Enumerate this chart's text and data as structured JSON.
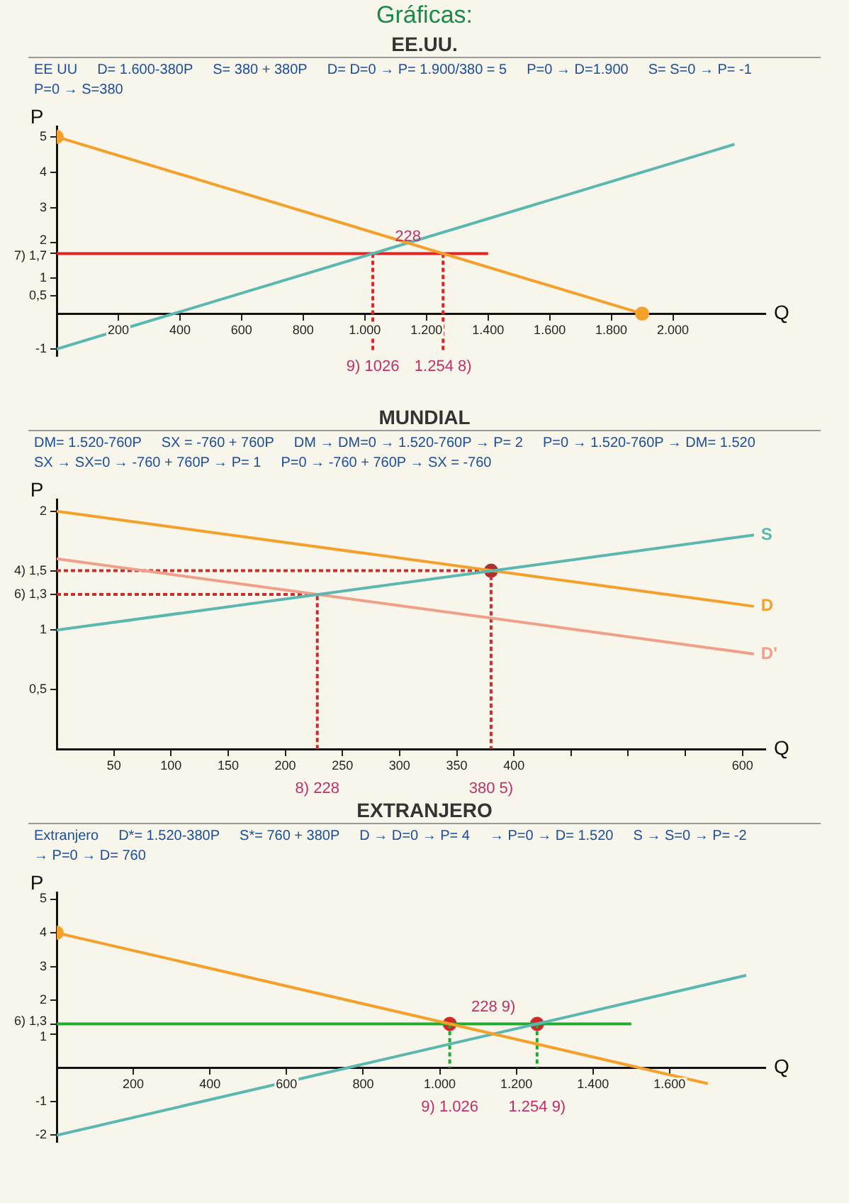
{
  "chart_data": [
    {
      "type": "line",
      "subtitle": "Gráficas:",
      "title": "EE.UU.",
      "xlabel": "Q",
      "ylabel": "P",
      "xlim": [
        0,
        2300
      ],
      "ylim": [
        -1.2,
        5.3
      ],
      "xticks": [
        200,
        400,
        600,
        800,
        {
          "value": 1000,
          "label": "1.000"
        },
        {
          "value": 1200,
          "label": "1.200"
        },
        {
          "value": 1400,
          "label": "1.400"
        },
        {
          "value": 1600,
          "label": "1.600"
        },
        {
          "value": 1800,
          "label": "1.800"
        },
        {
          "value": 2000,
          "label": "2.000"
        }
      ],
      "yticks": [
        -1,
        {
          "value": 0.5,
          "label": "0,5"
        },
        1,
        {
          "value": 1.7,
          "label": "7) 1,7"
        },
        2,
        3,
        4,
        5
      ],
      "grid": false,
      "legend": false,
      "series": [
        {
          "type": "line",
          "color": "#f5a02a",
          "marker": "none",
          "x": [
            0,
            1900
          ],
          "values": [
            5,
            0
          ]
        },
        {
          "type": "line",
          "color": "#5bb8b0",
          "marker": "none",
          "x": [
            0,
            2200
          ],
          "values": [
            -1,
            4.79
          ]
        },
        {
          "type": "line",
          "color": "#e02424",
          "marker": "none",
          "x": [
            0,
            1400
          ],
          "values": [
            1.7,
            1.7
          ]
        },
        {
          "type": "line",
          "color": "#e02424",
          "marker": "none",
          "line_style": "dashed",
          "x": [
            1026,
            1026
          ],
          "values": [
            1.7,
            -1.1
          ]
        },
        {
          "type": "line",
          "color": "#e02424",
          "marker": "none",
          "line_style": "dashed",
          "x": [
            1254,
            1254
          ],
          "values": [
            1.7,
            -1.1
          ]
        },
        {
          "type": "scatter",
          "color": "#f5a02a",
          "marker": "circle",
          "x": [
            0,
            1900
          ],
          "values": [
            5,
            0
          ]
        }
      ],
      "annotations": [
        "EE UU",
        "D= 1.600-380P",
        "S= 380 + 380P",
        "D= D=0 → P= 1.900/380 = 5",
        "P=0 → D=1.900",
        "S= S=0 → P= -1",
        "P=0 → S=380",
        {
          "text": "228",
          "x": 1140,
          "y": 1.7
        },
        {
          "text": "9) 1026",
          "x": 1026,
          "y": -1.1
        },
        {
          "text": "1.254 8)",
          "x": 1254,
          "y": -1.1
        }
      ]
    },
    {
      "type": "line",
      "title": "MUNDIAL",
      "xlabel": "Q",
      "ylabel": "P",
      "xlim": [
        0,
        620
      ],
      "ylim": [
        0,
        2.1
      ],
      "xticks": [
        50,
        100,
        150,
        200,
        250,
        300,
        350,
        400,
        {
          "value": 450,
          "label": null
        },
        {
          "value": 500,
          "label": null
        },
        {
          "value": 550,
          "label": null
        },
        600
      ],
      "yticks": [
        {
          "value": 0.5,
          "label": "0,5"
        },
        1,
        {
          "value": 1.3,
          "label": "6) 1,3"
        },
        {
          "value": 1.5,
          "label": "4) 1,5"
        },
        2
      ],
      "grid": false,
      "legend": false,
      "series": [
        {
          "type": "line",
          "name": "S",
          "color": "#5bb8b0",
          "marker": "none",
          "x": [
            0,
            610
          ],
          "values": [
            1,
            1.8
          ]
        },
        {
          "type": "line",
          "name": "D",
          "color": "#f5a02a",
          "marker": "none",
          "x": [
            0,
            610
          ],
          "values": [
            2,
            1.2
          ]
        },
        {
          "type": "line",
          "name": "D'",
          "color": "#f0a08a",
          "marker": "none",
          "x": [
            0,
            610
          ],
          "values": [
            1.6,
            0.8
          ]
        },
        {
          "type": "line",
          "color": "#c83030",
          "marker": "none",
          "line_style": "dashed",
          "x": [
            0,
            380,
            380
          ],
          "values": [
            1.5,
            1.5,
            0
          ]
        },
        {
          "type": "line",
          "color": "#c83030",
          "marker": "none",
          "line_style": "dashed",
          "x": [
            0,
            228,
            228
          ],
          "values": [
            1.3,
            1.3,
            0
          ]
        },
        {
          "type": "scatter",
          "color": "#b03030",
          "marker": "circle",
          "x": [
            380
          ],
          "values": [
            1.5
          ]
        }
      ],
      "annotations": [
        "DM= 1.520-760P",
        "SX = -760 + 760P",
        "DM → DM=0 → 1.520-760P → P= 2",
        "P=0 → 1.520-760P → DM= 1.520",
        "SX → SX=0 → -760 + 760P → P= 1",
        "P=0 → -760 + 760P → SX = -760",
        {
          "text": "8) 228",
          "x": 228,
          "y": 0
        },
        {
          "text": "380 5)",
          "x": 380,
          "y": 0
        }
      ]
    },
    {
      "type": "line",
      "title": "EXTRANJERO",
      "xlabel": "Q",
      "ylabel": "P",
      "xlim": [
        0,
        1850
      ],
      "ylim": [
        -2.2,
        5.2
      ],
      "xticks": [
        200,
        400,
        600,
        800,
        {
          "value": 1000,
          "label": "1.000"
        },
        {
          "value": 1200,
          "label": "1.200"
        },
        {
          "value": 1400,
          "label": "1.400"
        },
        {
          "value": 1600,
          "label": "1.600"
        }
      ],
      "yticks": [
        -2,
        -1,
        1,
        {
          "value": 1.3,
          "label": "6) 1,3"
        },
        2,
        3,
        4,
        5
      ],
      "grid": false,
      "legend": false,
      "series": [
        {
          "type": "line",
          "color": "#f5a02a",
          "marker": "none",
          "x": [
            0,
            1700
          ],
          "values": [
            4,
            -0.47
          ]
        },
        {
          "type": "line",
          "color": "#5bb8b0",
          "marker": "none",
          "x": [
            0,
            1800
          ],
          "values": [
            -2,
            2.74
          ]
        },
        {
          "type": "line",
          "color": "#22aa33",
          "marker": "none",
          "x": [
            0,
            1500
          ],
          "values": [
            1.3,
            1.3
          ]
        },
        {
          "type": "line",
          "color": "#22aa33",
          "marker": "none",
          "line_style": "dashed",
          "x": [
            1026,
            1026
          ],
          "values": [
            1.3,
            0
          ]
        },
        {
          "type": "line",
          "color": "#22aa33",
          "marker": "none",
          "line_style": "dashed",
          "x": [
            1254,
            1254
          ],
          "values": [
            1.3,
            0
          ]
        },
        {
          "type": "scatter",
          "color": "#d02828",
          "marker": "circle",
          "x": [
            1026,
            1254
          ],
          "values": [
            1.3,
            1.3
          ]
        },
        {
          "type": "scatter",
          "color": "#f5a02a",
          "marker": "circle",
          "x": [
            0
          ],
          "values": [
            4
          ]
        }
      ],
      "annotations": [
        "Extranjero",
        "D*= 1.520-380P",
        "S*= 760 + 380P",
        "D → D=0 → P= 4",
        "→ P=0 → D= 1.520",
        "S → S=0 → P= -2",
        "→ P=0 → D= 760",
        {
          "text": "228 9)",
          "x": 1140,
          "y": 1.3
        },
        {
          "text": "9) 1.026",
          "x": 1026,
          "y": 0
        },
        {
          "text": "1.254 9)",
          "x": 1254,
          "y": 0
        }
      ]
    }
  ]
}
